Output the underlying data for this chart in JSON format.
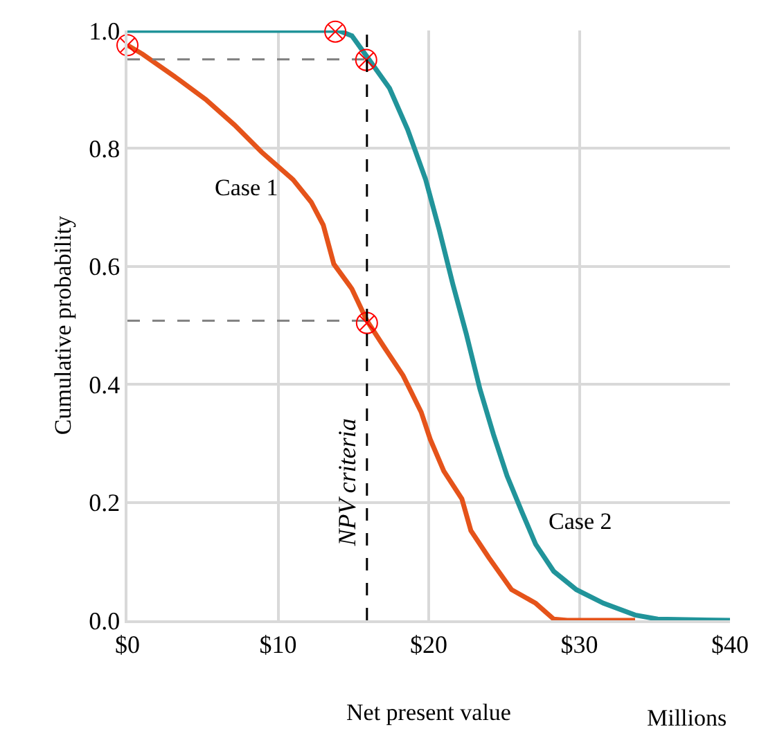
{
  "chart_data": {
    "type": "line",
    "xlabel": "Net present value",
    "ylabel": "Cumulative probability",
    "annotations": [
      "Millions"
    ],
    "xlim": [
      0,
      40
    ],
    "xticks": [
      {
        "value": 0,
        "label": "$0"
      },
      {
        "value": 10,
        "label": "$10"
      },
      {
        "value": 20,
        "label": "$20"
      },
      {
        "value": 30,
        "label": "$30"
      },
      {
        "value": 40,
        "label": "$40"
      }
    ],
    "ylim": [
      0,
      1
    ],
    "yticks": [
      {
        "value": 0,
        "label": "0.0"
      },
      {
        "value": 0.2,
        "label": "0.2"
      },
      {
        "value": 0.4,
        "label": "0.4"
      },
      {
        "value": 0.6,
        "label": "0.6"
      },
      {
        "value": 0.8,
        "label": "0.8"
      },
      {
        "value": 1,
        "label": "1.0"
      }
    ],
    "grid": true,
    "marker": "none",
    "line_style": "solid",
    "ref_lines": [
      {
        "axis": "x",
        "value": 15.9,
        "label": "NPV criteria",
        "color": "#000000",
        "line_style": "dashed"
      }
    ],
    "series": [
      {
        "name": "Case 1",
        "color": "#e5531a",
        "x": [
          0,
          1.0,
          3.4,
          5.2,
          7.1,
          8.9,
          11.0,
          12.2,
          13.0,
          13.7,
          14.9,
          15.9,
          17.1,
          18.3,
          19.5,
          20.1,
          21.0,
          22.2,
          22.8,
          24.0,
          25.5,
          27.1,
          28.3,
          29.2,
          33.7
        ],
        "values": [
          0.975,
          0.96,
          0.917,
          0.883,
          0.84,
          0.794,
          0.747,
          0.709,
          0.67,
          0.604,
          0.562,
          0.508,
          0.461,
          0.415,
          0.353,
          0.307,
          0.253,
          0.206,
          0.152,
          0.106,
          0.052,
          0.029,
          0.002,
          0,
          0
        ]
      },
      {
        "name": "Case 2",
        "color": "#21949a",
        "x": [
          0,
          14.0,
          14.9,
          16.0,
          17.4,
          18.6,
          19.8,
          20.7,
          21.6,
          22.5,
          23.4,
          24.3,
          25.2,
          26.2,
          27.1,
          28.3,
          29.8,
          31.6,
          33.7,
          35.2,
          40.0
        ],
        "values": [
          1.0,
          1.0,
          0.991,
          0.952,
          0.902,
          0.832,
          0.747,
          0.662,
          0.57,
          0.485,
          0.392,
          0.315,
          0.245,
          0.183,
          0.129,
          0.083,
          0.052,
          0.029,
          0.009,
          0.002,
          0
        ]
      },
      {
        "color": "#7f7f7f",
        "line_style": "dashed",
        "x": [
          0,
          15.9
        ],
        "values": [
          0.951,
          0.951
        ]
      },
      {
        "color": "#7f7f7f",
        "line_style": "dashed",
        "x": [
          0,
          15.9
        ],
        "values": [
          0.508,
          0.508
        ]
      },
      {
        "type": "scatter",
        "marker": "cross",
        "color": "#ff0000",
        "x": [
          0,
          13.8,
          15.85,
          15.9
        ],
        "values": [
          0.975,
          0.998,
          0.95,
          0.504
        ]
      }
    ]
  }
}
